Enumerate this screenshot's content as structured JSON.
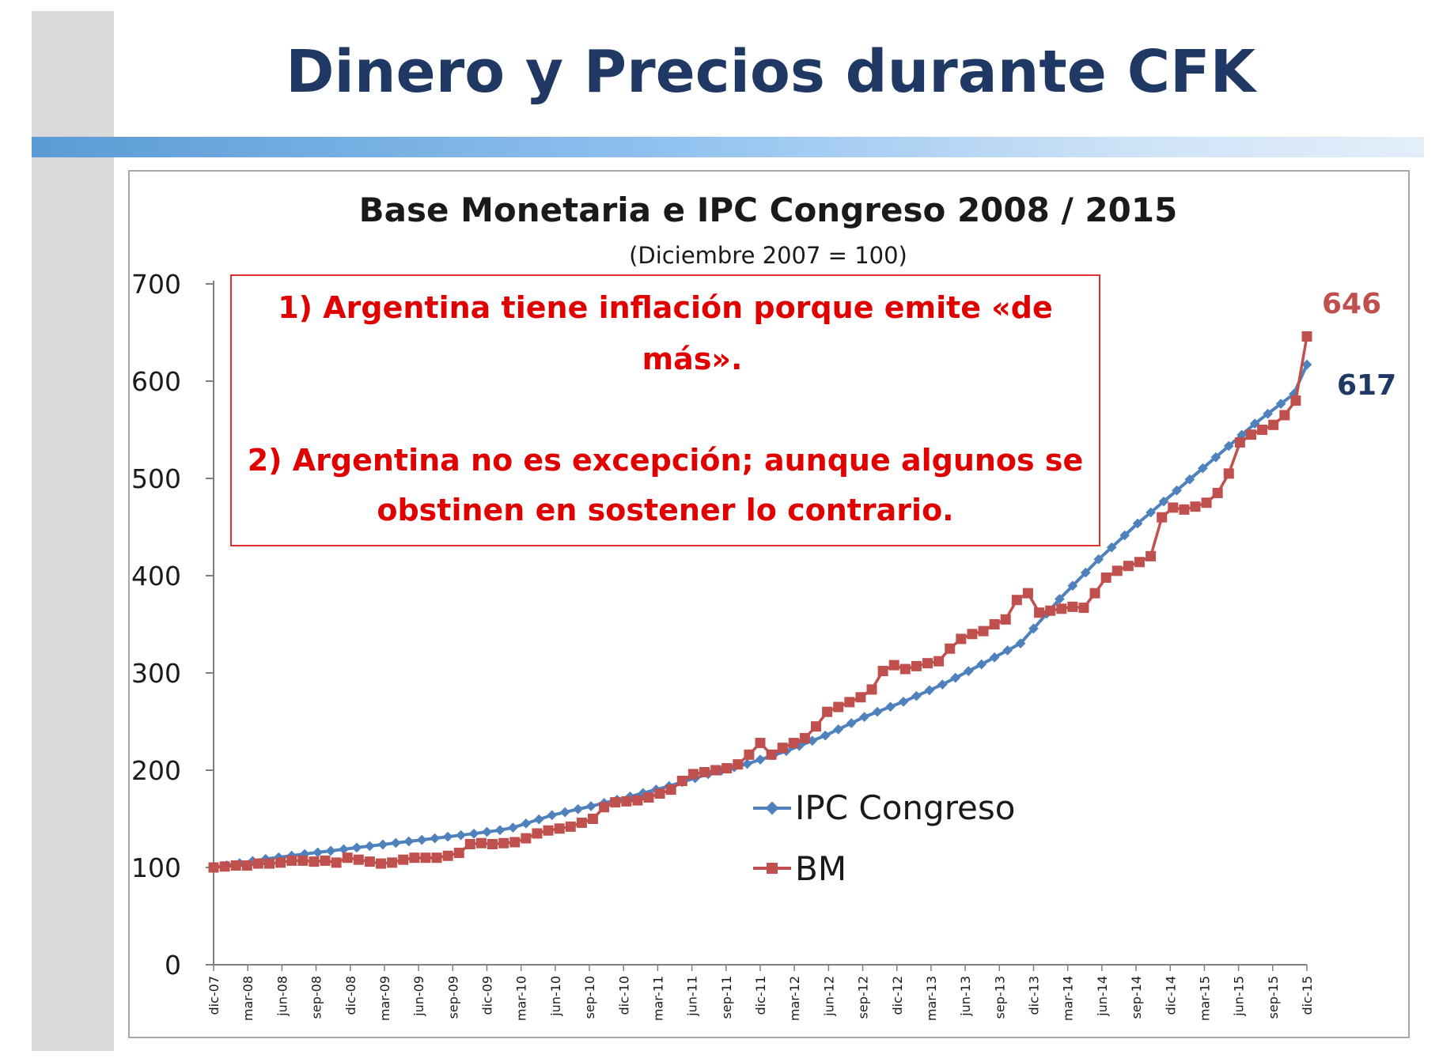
{
  "slide": {
    "title": "Dinero y Precios durante CFK"
  },
  "chart_data": {
    "type": "line",
    "title": "Base Monetaria e IPC Congreso 2008 / 2015",
    "subtitle": "(Diciembre 2007 = 100)",
    "ylim": [
      0,
      700
    ],
    "yticks": [
      "0",
      "100",
      "200",
      "300",
      "400",
      "500",
      "600",
      "700"
    ],
    "x_tick_labels": [
      "dic-07",
      "mar-08",
      "jun-08",
      "sep-08",
      "dic-08",
      "mar-09",
      "jun-09",
      "sep-09",
      "dic-09",
      "mar-10",
      "jun-10",
      "sep-10",
      "dic-10",
      "mar-11",
      "jun-11",
      "sep-11",
      "dic-11",
      "mar-12",
      "jun-12",
      "sep-12",
      "dic-12",
      "mar-13",
      "jun-13",
      "sep-13",
      "dic-13",
      "mar-14",
      "jun-14",
      "sep-14",
      "dic-14",
      "mar-15",
      "jun-15",
      "sep-15",
      "dic-15"
    ],
    "legend_position": "center-right",
    "colors": {
      "ipc": "#4f81bd",
      "bm": "#c0504d",
      "ipc_label": "#1f3864",
      "bm_label": "#c0504d",
      "annotation": "#e00000"
    },
    "series": [
      {
        "name": "IPC Congreso",
        "marker": "diamond",
        "end_label": "617",
        "values": [
          100,
          102.2,
          104.4,
          106.6,
          108.8,
          110.4,
          112.1,
          113.8,
          115.5,
          117.1,
          118.7,
          120.4,
          122.0,
          123.6,
          125.2,
          126.8,
          128.4,
          130.0,
          131.6,
          133.2,
          134.8,
          136.6,
          138.4,
          141.0,
          145.2,
          149.5,
          153.7,
          156.8,
          159.9,
          163.0,
          166.3,
          169.6,
          172.9,
          176.5,
          180.1,
          183.7,
          187.8,
          191.9,
          196.0,
          199.5,
          203.0,
          206.5,
          210.9,
          215.3,
          219.7,
          225.0,
          230.3,
          235.6,
          242.0,
          248.4,
          254.8,
          260.0,
          265.2,
          270.4,
          276.3,
          282.2,
          288.1,
          295.0,
          301.9,
          308.8,
          316.0,
          323.2,
          330.4,
          345.6,
          360.8,
          376.0,
          389.6,
          403.2,
          416.8,
          429.1,
          441.4,
          453.7,
          465.0,
          476.3,
          487.6,
          499.0,
          510.4,
          521.8,
          533.3,
          544.8,
          556.3,
          566.5,
          576.7,
          586.9,
          617
        ]
      },
      {
        "name": "BM",
        "marker": "square",
        "end_label": "646",
        "values": [
          100,
          101,
          102,
          102,
          104,
          104,
          105,
          107,
          107,
          106,
          107,
          105,
          110,
          108,
          106,
          104,
          105,
          108,
          110,
          110,
          110,
          112,
          115,
          124,
          125,
          124,
          125,
          126,
          130,
          135,
          138,
          140,
          142,
          146,
          150,
          162,
          167,
          168,
          169,
          172,
          176,
          180,
          189,
          196,
          198,
          200,
          202,
          206,
          216,
          228,
          216,
          223,
          228,
          233,
          245,
          260,
          265,
          270,
          275,
          283,
          302,
          308,
          304,
          307,
          310,
          312,
          325,
          335,
          340,
          343,
          350,
          355,
          375,
          382,
          362,
          364,
          366,
          368,
          367,
          382,
          398,
          405,
          410,
          414,
          420,
          460,
          470,
          468,
          471,
          475,
          485,
          505,
          537,
          545,
          550,
          555,
          565,
          580,
          646
        ]
      }
    ]
  },
  "annotation": {
    "line1": "1)  Argentina tiene inflación porque emite «de",
    "line2": "más».",
    "line3": "2) Argentina no es excepción; aunque algunos se",
    "line4": "obstinen en sostener lo contrario."
  }
}
